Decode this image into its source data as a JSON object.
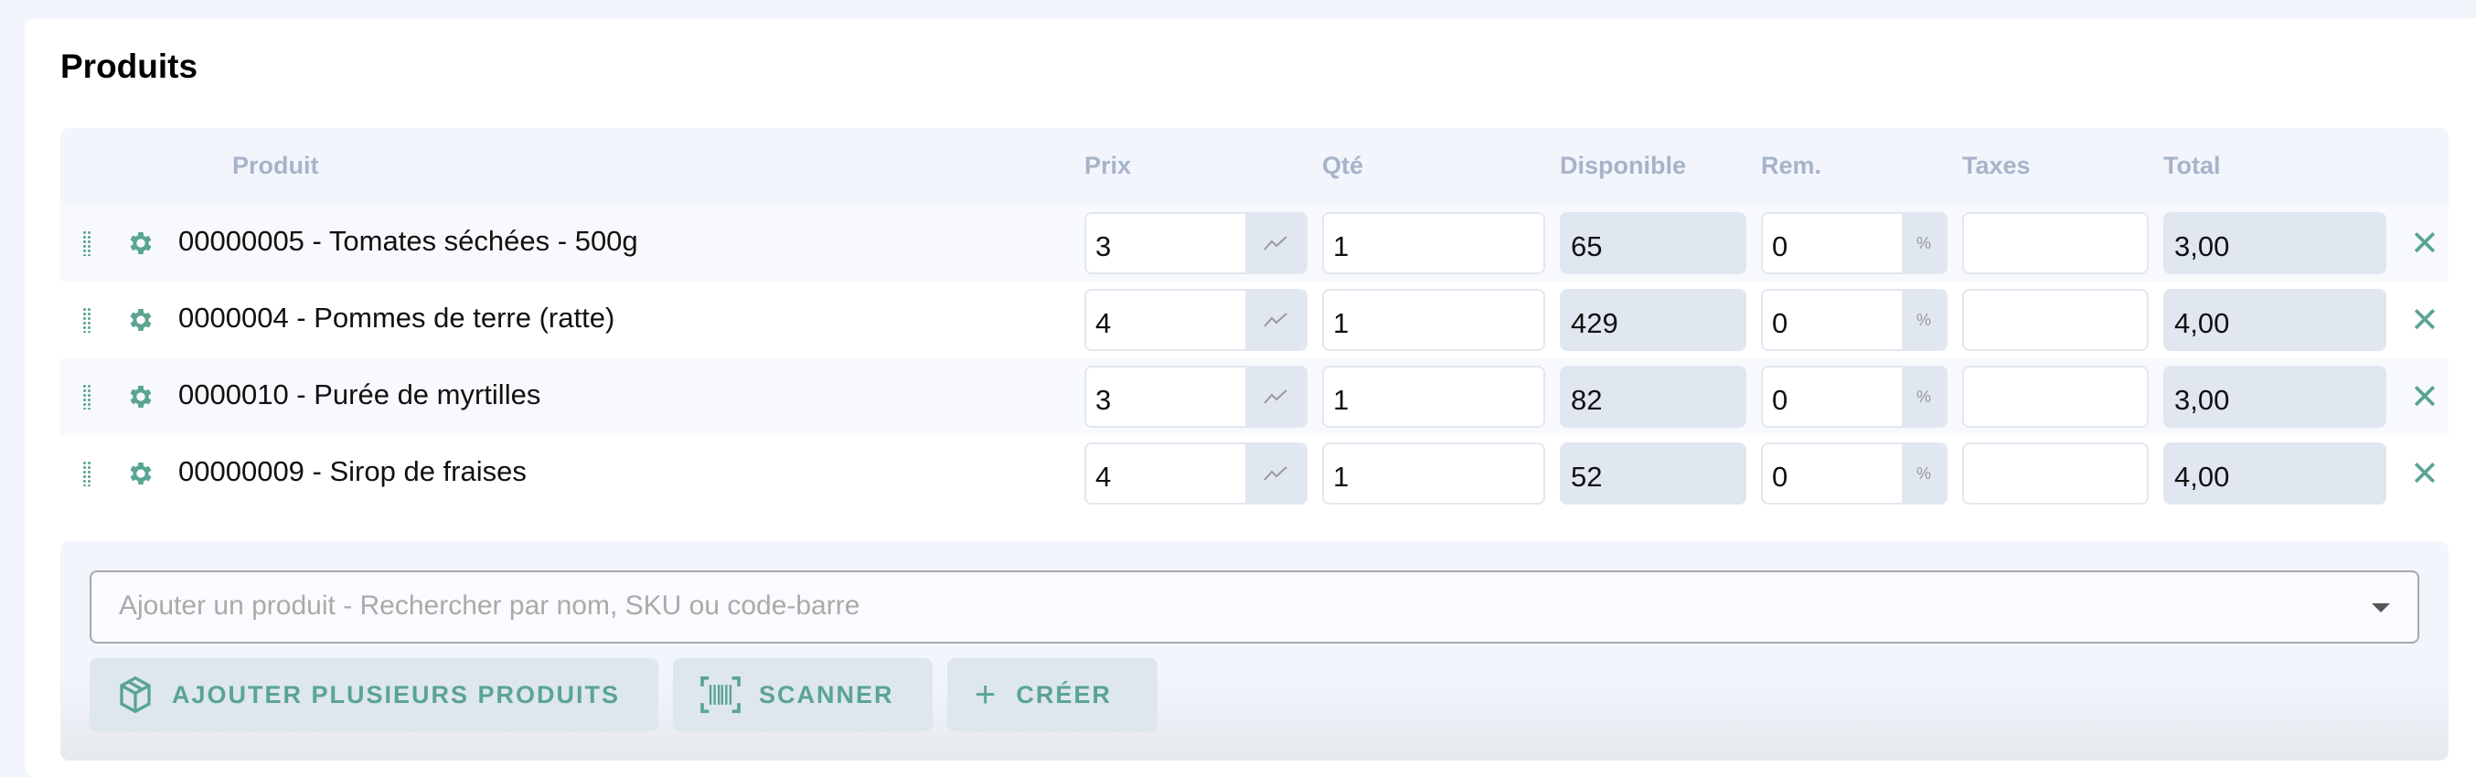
{
  "section": {
    "title": "Produits"
  },
  "columns": {
    "product": "Produit",
    "price": "Prix",
    "qty": "Qté",
    "available": "Disponible",
    "discount": "Rem.",
    "taxes": "Taxes",
    "total": "Total"
  },
  "rows": [
    {
      "name": "00000005 - Tomates séchées - 500g",
      "price": "3",
      "qty": "1",
      "available": "65",
      "discount": "0",
      "discount_unit": "%",
      "taxes": "",
      "total": "3,00"
    },
    {
      "name": "0000004 - Pommes de terre (ratte)",
      "price": "4",
      "qty": "1",
      "available": "429",
      "discount": "0",
      "discount_unit": "%",
      "taxes": "",
      "total": "4,00"
    },
    {
      "name": "0000010 - Purée de myrtilles",
      "price": "3",
      "qty": "1",
      "available": "82",
      "discount": "0",
      "discount_unit": "%",
      "taxes": "",
      "total": "3,00"
    },
    {
      "name": "00000009 - Sirop de fraises",
      "price": "4",
      "qty": "1",
      "available": "52",
      "discount": "0",
      "discount_unit": "%",
      "taxes": "",
      "total": "4,00"
    }
  ],
  "add": {
    "placeholder": "Ajouter un produit - Rechercher par nom, SKU ou code-barre",
    "add_multiple": "AJOUTER PLUSIEURS PRODUITS",
    "scan": "SCANNER",
    "create": "CRÉER"
  },
  "colors": {
    "accent": "#5aa493",
    "header_text": "#a7b3c9",
    "readonly_bg": "#e1e7f1"
  }
}
